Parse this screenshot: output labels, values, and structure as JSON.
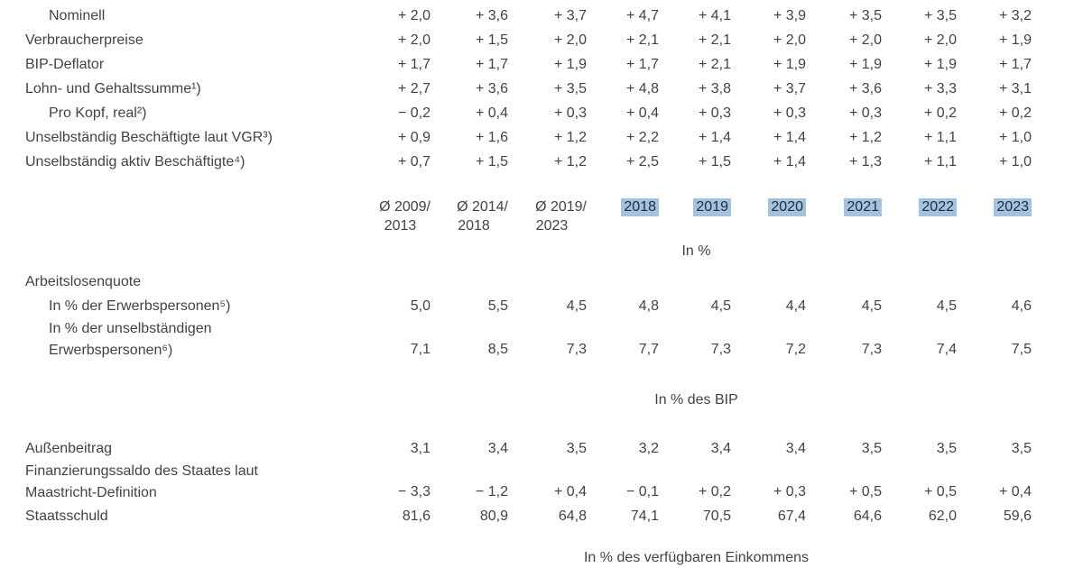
{
  "theme": {
    "text_color": "#3e434b",
    "year_highlight_bg": "#a5c2dd",
    "year_highlight_text": "#1e2c3c",
    "background": "#ffffff"
  },
  "table": {
    "header": {
      "avg": [
        {
          "line1": "Ø 2009/",
          "line2": "2013"
        },
        {
          "line1": "Ø 2014/",
          "line2": "2018"
        },
        {
          "line1": "Ø 2019/",
          "line2": "2023"
        }
      ],
      "years": [
        "2018",
        "2019",
        "2020",
        "2021",
        "2022",
        "2023"
      ]
    },
    "unit_labels": {
      "percent": "In %",
      "percent_bip": "In % des BIP",
      "percent_income": "In % des verfügbaren Einkommens"
    },
    "growth_rows": [
      {
        "label": "Nominell",
        "indent": true,
        "values": [
          "+ 2,0",
          "+ 3,6",
          "+ 3,7",
          "+ 4,7",
          "+ 4,1",
          "+ 3,9",
          "+ 3,5",
          "+ 3,5",
          "+ 3,2"
        ]
      },
      {
        "label": "Verbraucherpreise",
        "values": [
          "+ 2,0",
          "+ 1,5",
          "+ 2,0",
          "+ 2,1",
          "+ 2,1",
          "+ 2,0",
          "+ 2,0",
          "+ 2,0",
          "+ 1,9"
        ]
      },
      {
        "label": "BIP-Deflator",
        "values": [
          "+ 1,7",
          "+ 1,7",
          "+ 1,9",
          "+ 1,7",
          "+ 2,1",
          "+ 1,9",
          "+ 1,9",
          "+ 1,9",
          "+ 1,7"
        ]
      },
      {
        "label": "Lohn- und Gehaltssumme¹)",
        "values": [
          "+ 2,7",
          "+ 3,6",
          "+ 3,5",
          "+ 4,8",
          "+ 3,8",
          "+ 3,7",
          "+ 3,6",
          "+ 3,3",
          "+ 3,1"
        ]
      },
      {
        "label": "Pro Kopf, real²)",
        "indent": true,
        "values": [
          "− 0,2",
          "+ 0,4",
          "+ 0,3",
          "+ 0,4",
          "+ 0,3",
          "+ 0,3",
          "+ 0,3",
          "+ 0,2",
          "+ 0,2"
        ]
      },
      {
        "label": "Unselbständig Beschäftigte laut VGR³)",
        "values": [
          "+ 0,9",
          "+ 1,6",
          "+ 1,2",
          "+ 2,2",
          "+ 1,4",
          "+ 1,4",
          "+ 1,2",
          "+ 1,1",
          "+ 1,0"
        ]
      },
      {
        "label": "Unselbständig aktiv Beschäftigte⁴)",
        "values": [
          "+ 0,7",
          "+ 1,5",
          "+ 1,2",
          "+ 2,5",
          "+ 1,5",
          "+ 1,4",
          "+ 1,3",
          "+ 1,1",
          "+ 1,0"
        ]
      }
    ],
    "unemployment_rows": [
      {
        "label": "Arbeitslosenquote",
        "values": [
          "",
          "",
          "",
          "",
          "",
          "",
          "",
          "",
          ""
        ]
      },
      {
        "label": "In % der Erwerbspersonen⁵)",
        "indent": true,
        "values": [
          "5,0",
          "5,5",
          "4,5",
          "4,8",
          "4,5",
          "4,4",
          "4,5",
          "4,5",
          "4,6"
        ]
      },
      {
        "label": [
          "In % der unselbständigen",
          "Erwerbspersonen⁶)"
        ],
        "indent": true,
        "values": [
          "7,1",
          "8,5",
          "7,3",
          "7,7",
          "7,3",
          "7,2",
          "7,3",
          "7,4",
          "7,5"
        ]
      }
    ],
    "finance_rows": [
      {
        "label": "Außenbeitrag",
        "values": [
          "3,1",
          "3,4",
          "3,5",
          "3,2",
          "3,4",
          "3,4",
          "3,5",
          "3,5",
          "3,5"
        ]
      },
      {
        "label": [
          "Finanzierungssaldo des Staates laut",
          "Maastricht-Definition"
        ],
        "values": [
          "− 3,3",
          "− 1,2",
          "+ 0,4",
          "− 0,1",
          "+ 0,2",
          "+ 0,3",
          "+ 0,5",
          "+ 0,5",
          "+ 0,4"
        ]
      },
      {
        "label": "Staatsschuld",
        "values": [
          "81,6",
          "80,9",
          "64,8",
          "74,1",
          "70,5",
          "67,4",
          "64,6",
          "62,0",
          "59,6"
        ]
      }
    ]
  }
}
